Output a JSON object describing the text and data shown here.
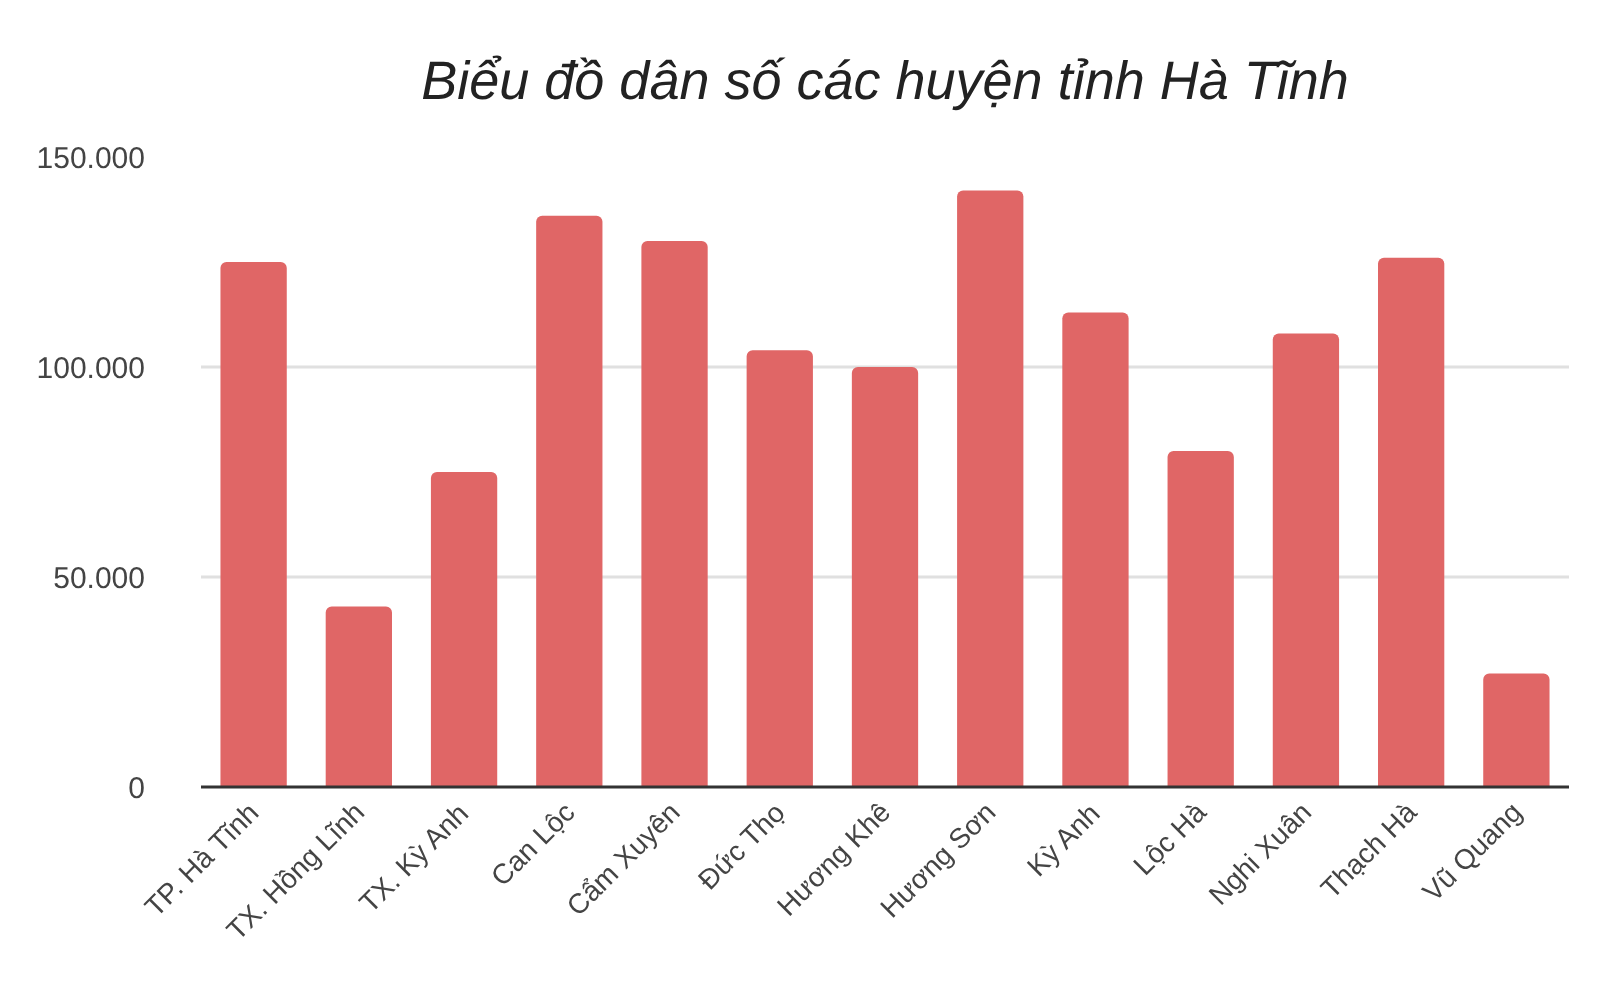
{
  "chart_data": {
    "type": "bar",
    "title": "Biểu đồ dân số các huyện tỉnh Hà Tĩnh",
    "categories": [
      "TP. Hà Tĩnh",
      "TX. Hồng Lĩnh",
      "TX. Kỳ Anh",
      "Can Lộc",
      "Cẩm Xuyên",
      "Đức Thọ",
      "Hương Khê",
      "Hương Sơn",
      "Kỳ Anh",
      "Lộc Hà",
      "Nghi Xuân",
      "Thạch Hà",
      "Vũ Quang"
    ],
    "values": [
      125000,
      43000,
      75000,
      136000,
      130000,
      104000,
      100000,
      142000,
      113000,
      80000,
      108000,
      126000,
      27000
    ],
    "color": "#e06666",
    "ylim": [
      0,
      150000
    ],
    "yticks": [
      0,
      {
        "value": 50000,
        "label": "50.000"
      },
      {
        "value": 100000,
        "label": "100.000"
      },
      {
        "value": 150000,
        "label": "150.000"
      }
    ],
    "grid": "y"
  }
}
